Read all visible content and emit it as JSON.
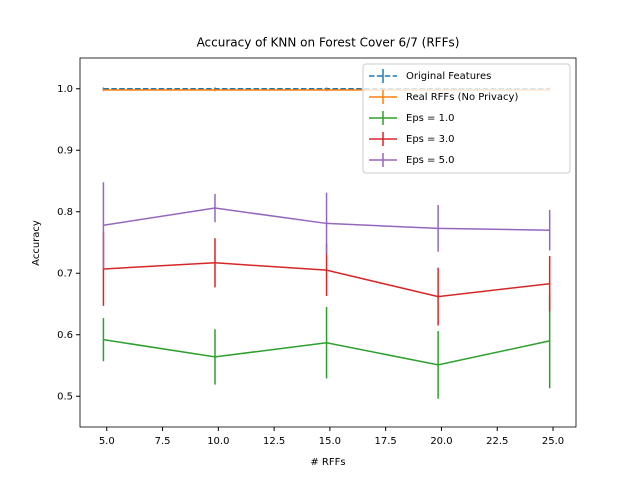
{
  "chart_data": {
    "type": "errorbar-line",
    "title": "Accuracy of KNN on Forest Cover 6/7 (RFFs)",
    "x_label": "# RFFs",
    "y_label": "Accuracy",
    "x": [
      4.85,
      9.85,
      14.85,
      19.85,
      24.85
    ],
    "series": [
      {
        "name": "Original Features",
        "color": "#1f77b4",
        "dashed": true,
        "values": [
          1.0,
          1.0,
          1.0,
          1.0,
          1.0
        ],
        "errors": [
          0.002,
          0.002,
          0.002,
          0.002,
          0.002
        ]
      },
      {
        "name": "Real RFFs (No Privacy)",
        "color": "#ff7f0e",
        "dashed": false,
        "values": [
          0.998,
          0.998,
          0.998,
          0.998,
          0.998
        ],
        "errors": [
          0.002,
          0.002,
          0.002,
          0.002,
          0.002
        ]
      },
      {
        "name": "Eps = 1.0",
        "color": "#2ca02c",
        "dashed": false,
        "values": [
          0.592,
          0.564,
          0.587,
          0.551,
          0.59
        ],
        "errors": [
          0.035,
          0.045,
          0.058,
          0.055,
          0.077
        ]
      },
      {
        "name": "Eps = 3.0",
        "color": "#d62728",
        "dashed": false,
        "values": [
          0.707,
          0.717,
          0.705,
          0.662,
          0.683
        ],
        "errors": [
          0.06,
          0.04,
          0.042,
          0.047,
          0.045
        ]
      },
      {
        "name": "Eps = 5.0",
        "color": "#9467bd",
        "dashed": false,
        "values": [
          0.778,
          0.806,
          0.781,
          0.773,
          0.77
        ],
        "errors": [
          0.07,
          0.023,
          0.05,
          0.038,
          0.033
        ]
      }
    ],
    "xlim": [
      3.8,
      26.03
    ],
    "ylim": [
      0.45,
      1.05
    ],
    "xticks": [
      {
        "value": 5,
        "label": "5.0"
      },
      7.5,
      {
        "value": 10,
        "label": "10.0"
      },
      12.5,
      {
        "value": 15,
        "label": "15.0"
      },
      17.5,
      {
        "value": 20,
        "label": "20.0"
      },
      22.5,
      {
        "value": 25,
        "label": "25.0"
      }
    ],
    "yticks": [
      0.5,
      0.6,
      0.7,
      0.8,
      0.9,
      {
        "value": 1,
        "label": "1.0"
      }
    ],
    "legend": "upper right"
  }
}
